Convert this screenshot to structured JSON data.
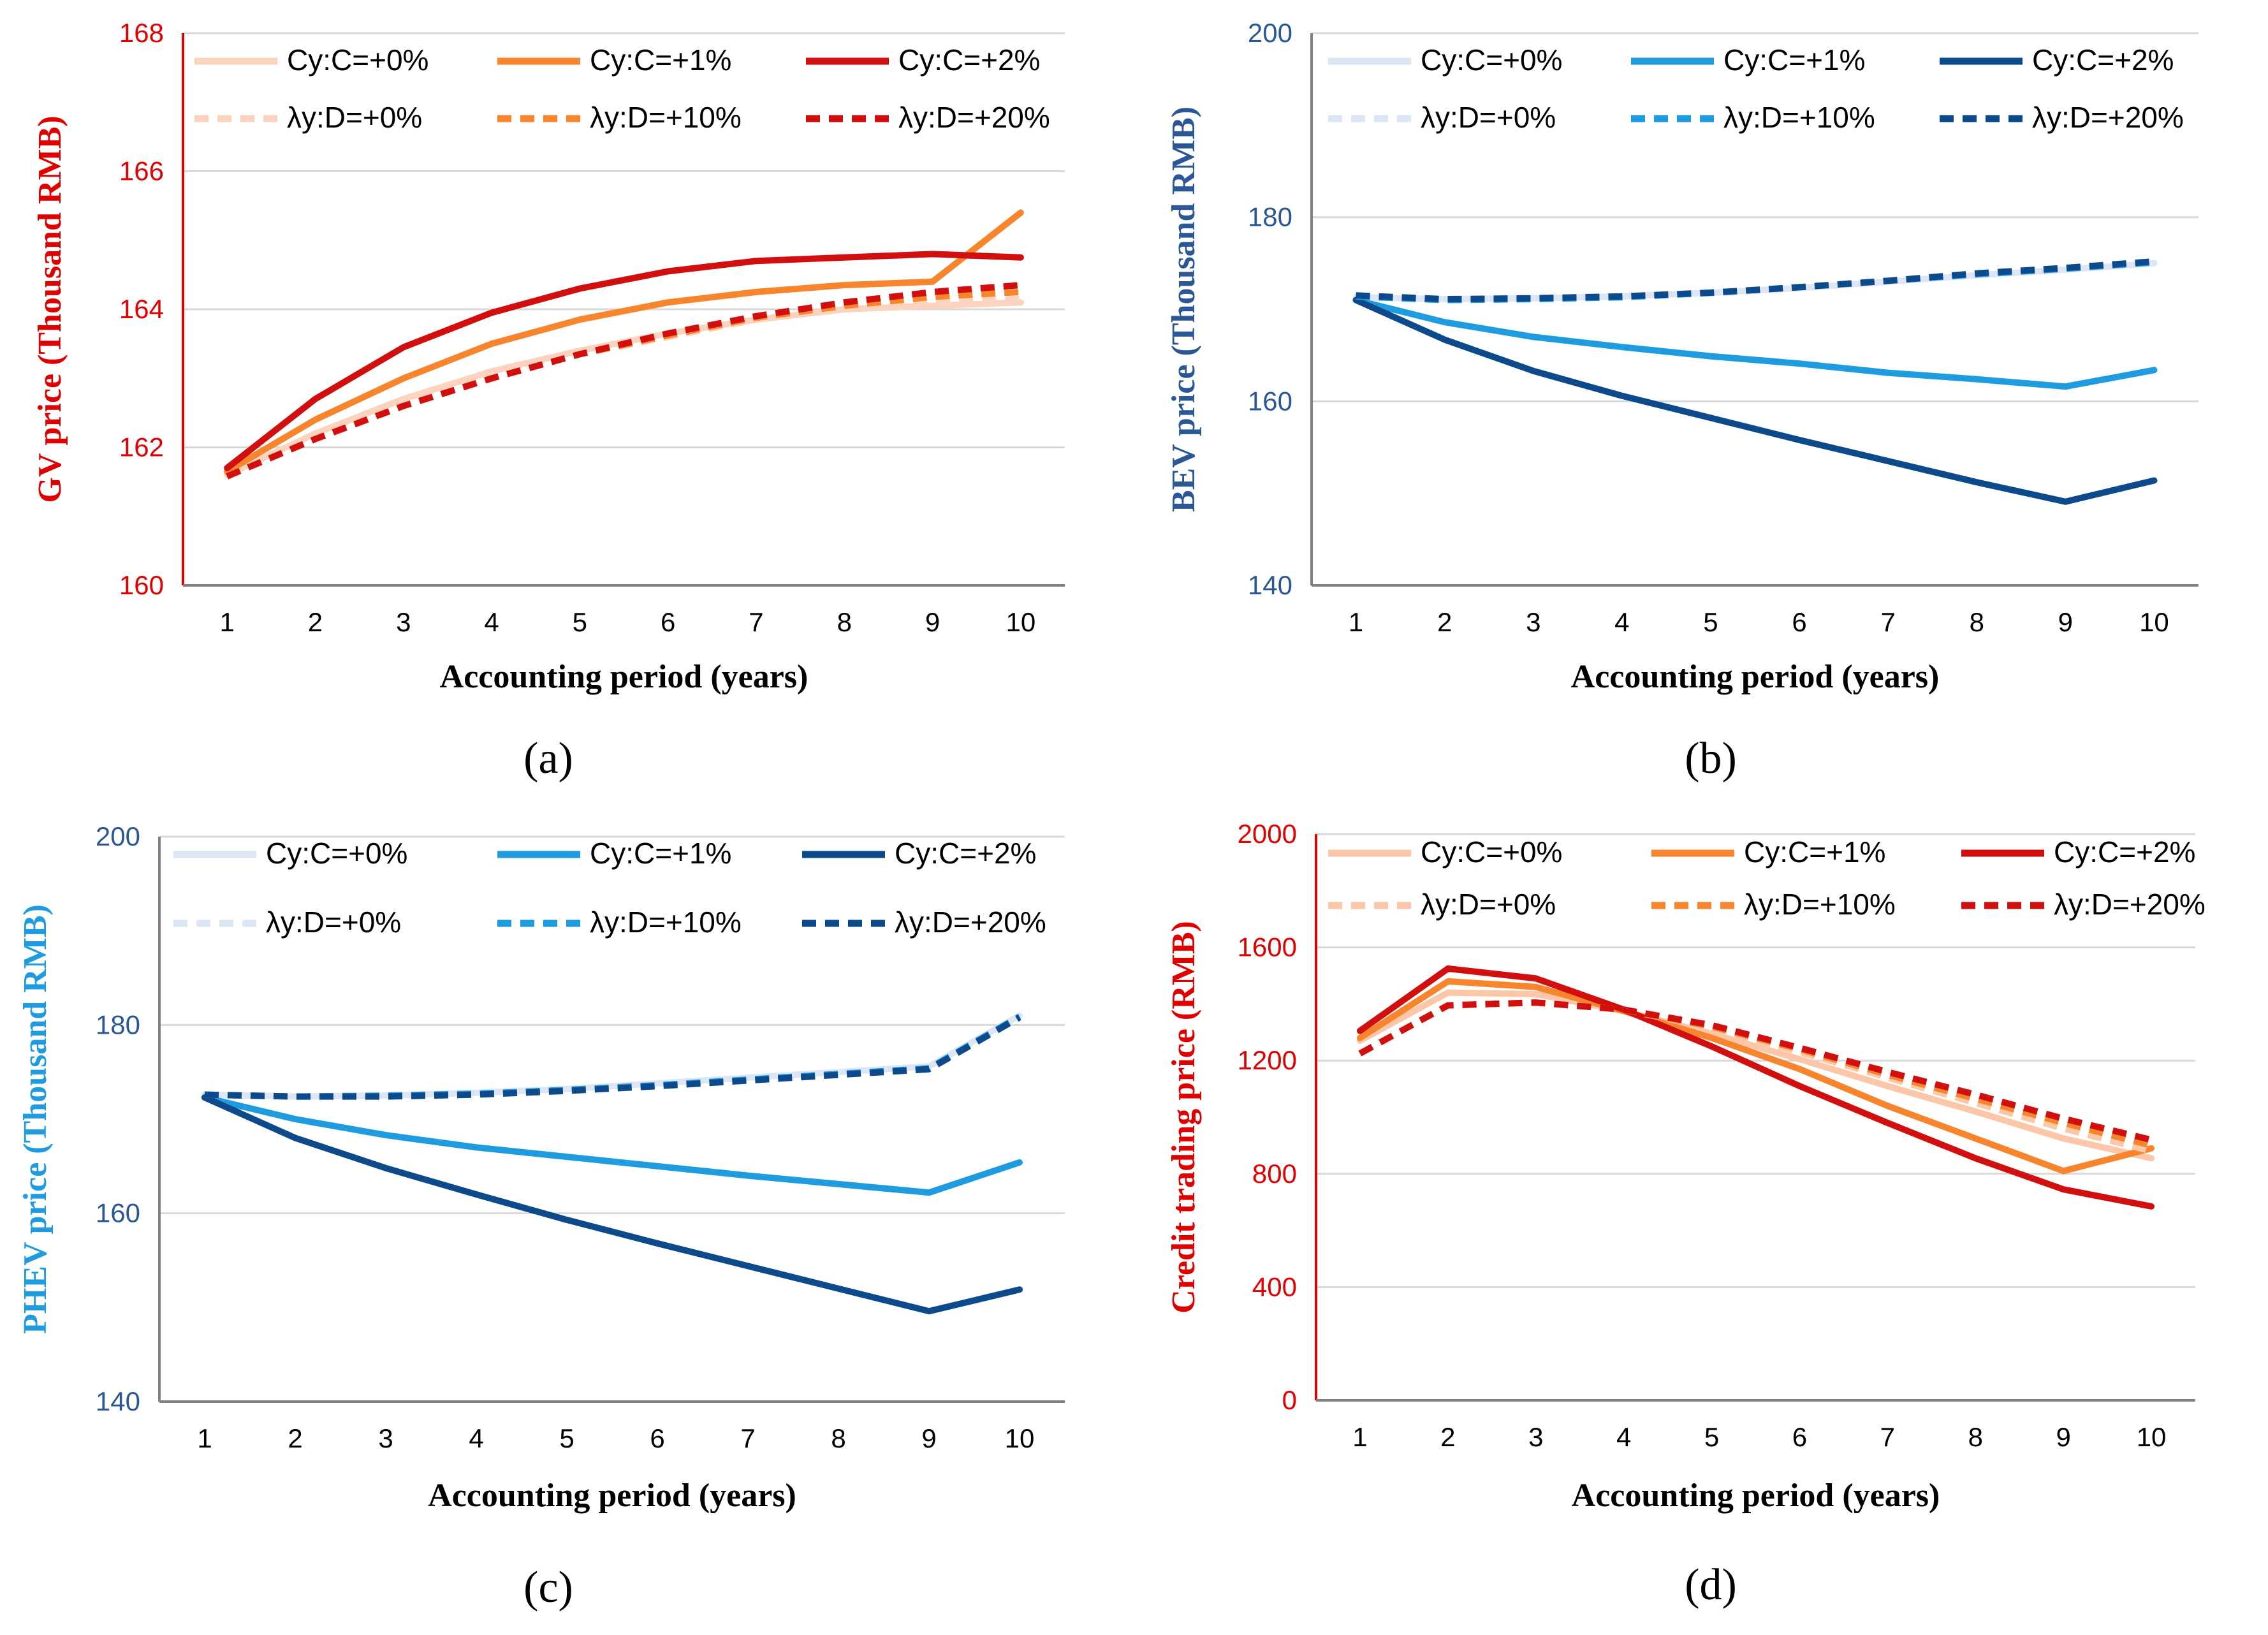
{
  "chart_data": [
    {
      "type": "line",
      "caption": "(a)",
      "title": "",
      "xlabel": "Accounting period (years)",
      "ylabel": "GV price (Thousand RMB)",
      "ylabel_color": "#E00000",
      "tick_color": "#E00000",
      "axis_color": "#E00000",
      "ylim": [
        160,
        168
      ],
      "yticks": [
        160,
        162,
        164,
        166,
        168
      ],
      "categories": [
        1,
        2,
        3,
        4,
        5,
        6,
        7,
        8,
        9,
        10
      ],
      "series": [
        {
          "name": "Cy:C=+0%",
          "color": "#FBD3BE",
          "dashed": false,
          "values": [
            161.6,
            162.2,
            162.7,
            163.1,
            163.4,
            163.65,
            163.85,
            164.0,
            164.05,
            164.1
          ]
        },
        {
          "name": "Cy:C=+1%",
          "color": "#F6852E",
          "dashed": false,
          "values": [
            161.65,
            162.4,
            163.0,
            163.5,
            163.85,
            164.1,
            164.25,
            164.35,
            164.4,
            165.4
          ]
        },
        {
          "name": "Cy:C=+2%",
          "color": "#D20F0F",
          "dashed": false,
          "values": [
            161.7,
            162.7,
            163.45,
            163.95,
            164.3,
            164.55,
            164.7,
            164.75,
            164.8,
            164.75
          ]
        },
        {
          "name": "λy:D=+0%",
          "color": "#FBD3BE",
          "dashed": true,
          "values": [
            161.58,
            162.12,
            162.6,
            163.0,
            163.35,
            163.6,
            163.85,
            164.0,
            164.1,
            164.15
          ]
        },
        {
          "name": "λy:D=+10%",
          "color": "#F6852E",
          "dashed": true,
          "values": [
            161.58,
            162.12,
            162.6,
            163.0,
            163.35,
            163.62,
            163.88,
            164.05,
            164.18,
            164.25
          ]
        },
        {
          "name": "λy:D=+20%",
          "color": "#D20F0F",
          "dashed": true,
          "values": [
            161.58,
            162.12,
            162.6,
            163.0,
            163.35,
            163.65,
            163.9,
            164.1,
            164.25,
            164.35
          ]
        }
      ]
    },
    {
      "type": "line",
      "caption": "(b)",
      "title": "",
      "xlabel": "Accounting period (years)",
      "ylabel": "BEV price (Thousand RMB)",
      "ylabel_color": "#2B5797",
      "tick_color": "#2B5797",
      "axis_color": "#808080",
      "ylim": [
        140,
        200
      ],
      "yticks": [
        140,
        160,
        180,
        200
      ],
      "categories": [
        1,
        2,
        3,
        4,
        5,
        6,
        7,
        8,
        9,
        10
      ],
      "series": [
        {
          "name": "Cy:C=+0%",
          "color": "#DCE6F5",
          "dashed": false,
          "values": [
            171.3,
            171.1,
            171.2,
            171.4,
            171.8,
            172.3,
            173.0,
            173.7,
            174.3,
            175.0
          ]
        },
        {
          "name": "Cy:C=+1%",
          "color": "#1F9BE0",
          "dashed": false,
          "values": [
            171.0,
            168.6,
            167.0,
            165.9,
            164.9,
            164.1,
            163.1,
            162.4,
            161.6,
            163.4
          ]
        },
        {
          "name": "Cy:C=+2%",
          "color": "#0D4A8C",
          "dashed": false,
          "values": [
            171.0,
            166.7,
            163.3,
            160.6,
            158.2,
            155.8,
            153.5,
            151.2,
            149.1,
            151.4
          ]
        },
        {
          "name": "λy:D=+0%",
          "color": "#DCE6F5",
          "dashed": true,
          "values": [
            171.4,
            171.0,
            171.1,
            171.3,
            171.7,
            172.3,
            173.0,
            173.7,
            174.3,
            175.0
          ]
        },
        {
          "name": "λy:D=+10%",
          "color": "#1F9BE0",
          "dashed": true,
          "values": [
            171.4,
            171.0,
            171.1,
            171.3,
            171.8,
            172.4,
            173.1,
            173.8,
            174.4,
            175.1
          ]
        },
        {
          "name": "λy:D=+20%",
          "color": "#0D4A8C",
          "dashed": true,
          "values": [
            171.5,
            171.1,
            171.2,
            171.4,
            171.8,
            172.4,
            173.1,
            173.9,
            174.5,
            175.2
          ]
        }
      ]
    },
    {
      "type": "line",
      "caption": "(c)",
      "title": "",
      "xlabel": "Accounting period (years)",
      "ylabel": "PHEV price (Thousand RMB)",
      "ylabel_color": "#1F9BE0",
      "tick_color": "#2B5797",
      "axis_color": "#808080",
      "ylim": [
        140,
        200
      ],
      "yticks": [
        140,
        160,
        180,
        200
      ],
      "categories": [
        1,
        2,
        3,
        4,
        5,
        6,
        7,
        8,
        9,
        10
      ],
      "series": [
        {
          "name": "Cy:C=+0%",
          "color": "#DCE6F5",
          "dashed": false,
          "values": [
            172.6,
            172.4,
            172.5,
            172.8,
            173.2,
            173.8,
            174.4,
            175.0,
            175.6,
            181.0
          ]
        },
        {
          "name": "Cy:C=+1%",
          "color": "#1F9BE0",
          "dashed": false,
          "values": [
            172.3,
            170.0,
            168.3,
            167.0,
            166.0,
            165.0,
            164.0,
            163.1,
            162.2,
            165.4
          ]
        },
        {
          "name": "Cy:C=+2%",
          "color": "#0D4A8C",
          "dashed": false,
          "values": [
            172.3,
            168.0,
            164.8,
            162.0,
            159.3,
            156.8,
            154.4,
            152.0,
            149.6,
            151.9
          ]
        },
        {
          "name": "λy:D=+0%",
          "color": "#DCE6F5",
          "dashed": true,
          "values": [
            172.6,
            172.4,
            172.5,
            172.8,
            173.2,
            173.7,
            174.3,
            174.9,
            175.5,
            180.9
          ]
        },
        {
          "name": "λy:D=+10%",
          "color": "#1F9BE0",
          "dashed": true,
          "values": [
            172.6,
            172.4,
            172.5,
            172.7,
            173.1,
            173.6,
            174.2,
            174.8,
            175.4,
            180.9
          ]
        },
        {
          "name": "λy:D=+20%",
          "color": "#0D4A8C",
          "dashed": true,
          "values": [
            172.6,
            172.4,
            172.4,
            172.6,
            173.0,
            173.5,
            174.1,
            174.7,
            175.3,
            180.8
          ]
        }
      ]
    },
    {
      "type": "line",
      "caption": "(d)",
      "title": "",
      "xlabel": "Accounting period (years)",
      "ylabel": "Credit trading price (RMB)",
      "ylabel_color": "#E00000",
      "tick_color": "#E00000",
      "axis_color": "#E00000",
      "ylim": [
        0,
        2000
      ],
      "yticks": [
        0,
        400,
        800,
        1200,
        1600,
        2000
      ],
      "categories": [
        1,
        2,
        3,
        4,
        5,
        6,
        7,
        8,
        9,
        10
      ],
      "series": [
        {
          "name": "Cy:C=+0%",
          "color": "#FBC7A8",
          "dashed": false,
          "values": [
            1270,
            1440,
            1435,
            1375,
            1295,
            1205,
            1110,
            1020,
            925,
            855
          ]
        },
        {
          "name": "Cy:C=+1%",
          "color": "#F6852E",
          "dashed": false,
          "values": [
            1280,
            1480,
            1460,
            1375,
            1280,
            1170,
            1040,
            925,
            810,
            890
          ]
        },
        {
          "name": "Cy:C=+2%",
          "color": "#D20F0F",
          "dashed": false,
          "values": [
            1305,
            1525,
            1490,
            1380,
            1250,
            1110,
            980,
            855,
            745,
            685
          ]
        },
        {
          "name": "λy:D=+0%",
          "color": "#FBC7A8",
          "dashed": true,
          "values": [
            1225,
            1395,
            1405,
            1380,
            1315,
            1230,
            1140,
            1050,
            960,
            880
          ]
        },
        {
          "name": "λy:D=+10%",
          "color": "#F6852E",
          "dashed": true,
          "values": [
            1225,
            1395,
            1405,
            1380,
            1320,
            1240,
            1150,
            1065,
            980,
            900
          ]
        },
        {
          "name": "λy:D=+20%",
          "color": "#D20F0F",
          "dashed": true,
          "values": [
            1225,
            1395,
            1405,
            1380,
            1325,
            1245,
            1160,
            1080,
            995,
            920
          ]
        }
      ]
    }
  ]
}
